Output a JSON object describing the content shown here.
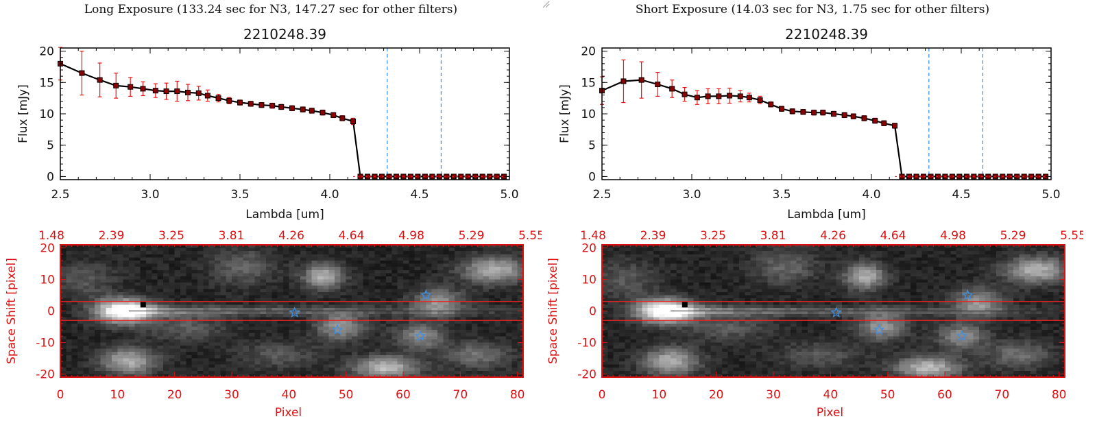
{
  "panels": [
    {
      "title": "Long Exposure (133.24 sec for N3, 147.27 sec for other filters)",
      "spectrum": {
        "type": "line",
        "title": "2210248.39",
        "xlabel": "Lambda [um]",
        "ylabel": "Flux [mJy]",
        "xlim": [
          2.5,
          5.0
        ],
        "ylim": [
          -0.5,
          20.5
        ],
        "xticks": [
          "2.5",
          "3.0",
          "3.5",
          "4.0",
          "4.5",
          "5.0"
        ],
        "xtick_values": [
          2.5,
          3.0,
          3.5,
          4.0,
          4.5,
          5.0
        ],
        "yticks": [
          "0",
          "5",
          "10",
          "15",
          "20"
        ],
        "ytick_values": [
          0,
          5,
          10,
          15,
          20
        ],
        "vlines": [
          4.32,
          4.62
        ],
        "colors": {
          "line": "#000000",
          "marker": "#8b0000",
          "error": "#ee1111",
          "vline": "#2f8fe8"
        },
        "x": [
          2.5,
          2.62,
          2.72,
          2.81,
          2.89,
          2.96,
          3.03,
          3.09,
          3.15,
          3.21,
          3.27,
          3.32,
          3.38,
          3.44,
          3.5,
          3.56,
          3.62,
          3.68,
          3.73,
          3.79,
          3.85,
          3.9,
          3.96,
          4.02,
          4.07,
          4.13,
          4.17,
          4.21,
          4.25,
          4.29,
          4.33,
          4.37,
          4.41,
          4.45,
          4.49,
          4.53,
          4.57,
          4.61,
          4.65,
          4.69,
          4.73,
          4.77,
          4.81,
          4.85,
          4.89,
          4.93,
          4.97
        ],
        "y": [
          18.0,
          16.5,
          15.4,
          14.5,
          14.3,
          14.0,
          13.7,
          13.6,
          13.6,
          13.4,
          13.3,
          12.9,
          12.5,
          12.1,
          11.8,
          11.6,
          11.4,
          11.3,
          11.1,
          10.9,
          10.7,
          10.5,
          10.2,
          9.8,
          9.3,
          8.8,
          0,
          0,
          0,
          0,
          0,
          0,
          0,
          0,
          0,
          0,
          0,
          0,
          0,
          0,
          0,
          0,
          0,
          0,
          0,
          0,
          0
        ],
        "yerr": [
          2.6,
          3.5,
          2.7,
          2.0,
          1.5,
          1.1,
          1.1,
          1.3,
          1.6,
          1.3,
          1.1,
          0.9,
          0.6,
          0.5,
          0.4,
          0.4,
          0.4,
          0.4,
          0.4,
          0.4,
          0.4,
          0.4,
          0.4,
          0.4,
          0.4,
          0.5,
          0,
          0,
          0,
          0,
          0,
          0,
          0,
          0,
          0,
          0,
          0,
          0,
          0,
          0,
          0,
          0,
          0,
          0,
          0,
          0,
          0
        ]
      },
      "image": {
        "type": "heatmap",
        "xlabel": "Pixel",
        "ylabel": "Space Shift [pixel]",
        "xlim": [
          0,
          81
        ],
        "ylim": [
          -21,
          21
        ],
        "xticks": [
          "0",
          "10",
          "20",
          "30",
          "40",
          "50",
          "60",
          "70",
          "80"
        ],
        "xtick_values": [
          0,
          10,
          20,
          30,
          40,
          50,
          60,
          70,
          80
        ],
        "yticks": [
          "20",
          "10",
          "0",
          "-10",
          "-20"
        ],
        "ytick_values": [
          20,
          10,
          0,
          -10,
          -20
        ],
        "top_ticks": [
          "1.48",
          "2.39",
          "3.25",
          "3.81",
          "4.26",
          "4.64",
          "4.98",
          "5.29",
          "5.55"
        ],
        "aperture_lines": [
          3,
          -3
        ],
        "black_square": [
          14.5,
          2
        ],
        "stars": [
          [
            41,
            -0.5
          ],
          [
            48.5,
            -6
          ],
          [
            63,
            -8
          ],
          [
            64,
            5
          ]
        ],
        "colors": {
          "axis": "#dd1111",
          "star": "#3f8fe0",
          "aperture": "#ee2222"
        }
      }
    },
    {
      "title": "Short Exposure (14.03 sec for N3, 1.75 sec for other filters)",
      "spectrum": {
        "type": "line",
        "title": "2210248.39",
        "xlabel": "Lambda [um]",
        "ylabel": "Flux [mJy]",
        "xlim": [
          2.5,
          5.0
        ],
        "ylim": [
          -0.5,
          20.5
        ],
        "xticks": [
          "2.5",
          "3.0",
          "3.5",
          "4.0",
          "4.5",
          "5.0"
        ],
        "xtick_values": [
          2.5,
          3.0,
          3.5,
          4.0,
          4.5,
          5.0
        ],
        "yticks": [
          "0",
          "5",
          "10",
          "15",
          "20"
        ],
        "ytick_values": [
          0,
          5,
          10,
          15,
          20
        ],
        "vlines": [
          4.32,
          4.62
        ],
        "colors": {
          "line": "#000000",
          "marker": "#8b0000",
          "error": "#ee1111",
          "vline": "#2f8fe8"
        },
        "x": [
          2.5,
          2.62,
          2.72,
          2.81,
          2.89,
          2.96,
          3.03,
          3.09,
          3.15,
          3.21,
          3.27,
          3.32,
          3.38,
          3.44,
          3.5,
          3.56,
          3.62,
          3.68,
          3.73,
          3.79,
          3.85,
          3.9,
          3.96,
          4.02,
          4.07,
          4.13,
          4.17,
          4.21,
          4.25,
          4.29,
          4.33,
          4.37,
          4.41,
          4.45,
          4.49,
          4.53,
          4.57,
          4.61,
          4.65,
          4.69,
          4.73,
          4.77,
          4.81,
          4.85,
          4.89,
          4.93,
          4.97
        ],
        "y": [
          13.7,
          15.2,
          15.4,
          14.7,
          14.0,
          13.1,
          12.6,
          12.8,
          12.8,
          12.9,
          12.8,
          12.6,
          12.2,
          11.5,
          10.8,
          10.4,
          10.3,
          10.2,
          10.2,
          10.0,
          9.8,
          9.6,
          9.3,
          8.9,
          8.5,
          8.1,
          0,
          0,
          0,
          0,
          0,
          0,
          0,
          0,
          0,
          0,
          0,
          0,
          0,
          0,
          0,
          0,
          0,
          0,
          0,
          0,
          0
        ],
        "yerr": [
          2.2,
          3.4,
          2.9,
          1.9,
          1.4,
          1.1,
          1.1,
          1.2,
          1.2,
          1.2,
          0.9,
          0.7,
          0.6,
          0.4,
          0.4,
          0.4,
          0.4,
          0.4,
          0.4,
          0.4,
          0.4,
          0.4,
          0.4,
          0.4,
          0.4,
          0.4,
          0,
          0,
          0,
          0,
          0,
          0,
          0,
          0,
          0,
          0,
          0,
          0,
          0,
          0,
          0,
          0,
          0,
          0,
          0,
          0,
          0
        ]
      },
      "image": {
        "type": "heatmap",
        "xlabel": "Pixel",
        "ylabel": "Space Shift [pixel]",
        "xlim": [
          0,
          81
        ],
        "ylim": [
          -21,
          21
        ],
        "xticks": [
          "0",
          "10",
          "20",
          "30",
          "40",
          "50",
          "60",
          "70",
          "80"
        ],
        "xtick_values": [
          0,
          10,
          20,
          30,
          40,
          50,
          60,
          70,
          80
        ],
        "yticks": [
          "20",
          "10",
          "0",
          "-10",
          "-20"
        ],
        "ytick_values": [
          20,
          10,
          0,
          -10,
          -20
        ],
        "top_ticks": [
          "1.48",
          "2.39",
          "3.25",
          "3.81",
          "4.26",
          "4.64",
          "4.98",
          "5.29",
          "5.55"
        ],
        "aperture_lines": [
          3,
          -3
        ],
        "black_square": [
          14.5,
          2
        ],
        "stars": [
          [
            41,
            -0.5
          ],
          [
            48.5,
            -6
          ],
          [
            63,
            -8
          ],
          [
            64,
            5
          ]
        ],
        "colors": {
          "axis": "#dd1111",
          "star": "#3f8fe0",
          "aperture": "#ee2222"
        }
      }
    }
  ]
}
